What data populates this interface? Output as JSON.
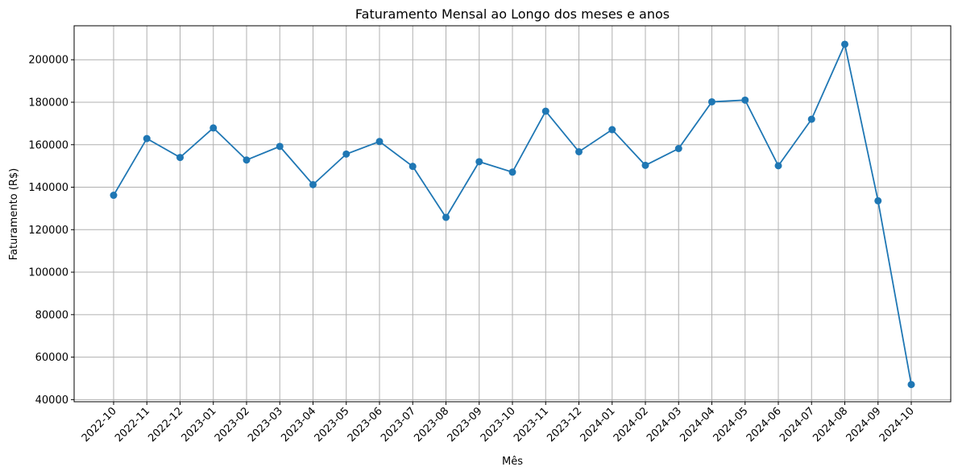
{
  "chart_data": {
    "type": "line",
    "title": "Faturamento Mensal ao Longo dos meses e anos",
    "xlabel": "Mês",
    "ylabel": "Faturamento (R$)",
    "categories": [
      "2022-10",
      "2022-11",
      "2022-12",
      "2023-01",
      "2023-02",
      "2023-03",
      "2023-04",
      "2023-05",
      "2023-06",
      "2023-07",
      "2023-08",
      "2023-09",
      "2023-10",
      "2023-11",
      "2023-12",
      "2024-01",
      "2024-02",
      "2024-03",
      "2024-04",
      "2024-05",
      "2024-06",
      "2024-07",
      "2024-08",
      "2024-09",
      "2024-10"
    ],
    "series": [
      {
        "values": [
          136200,
          162900,
          154000,
          167900,
          152800,
          159200,
          141200,
          155600,
          161500,
          149800,
          125800,
          152000,
          147100,
          175800,
          156700,
          167100,
          150300,
          158200,
          180200,
          181000,
          150100,
          172000,
          207300,
          133600,
          47100
        ],
        "color": "#1f77b4",
        "marker": "circle"
      }
    ],
    "ylim": [
      39000,
      216000
    ],
    "yticks": [
      40000,
      60000,
      80000,
      100000,
      120000,
      140000,
      160000,
      180000,
      200000
    ],
    "grid": true,
    "legend": "none"
  }
}
